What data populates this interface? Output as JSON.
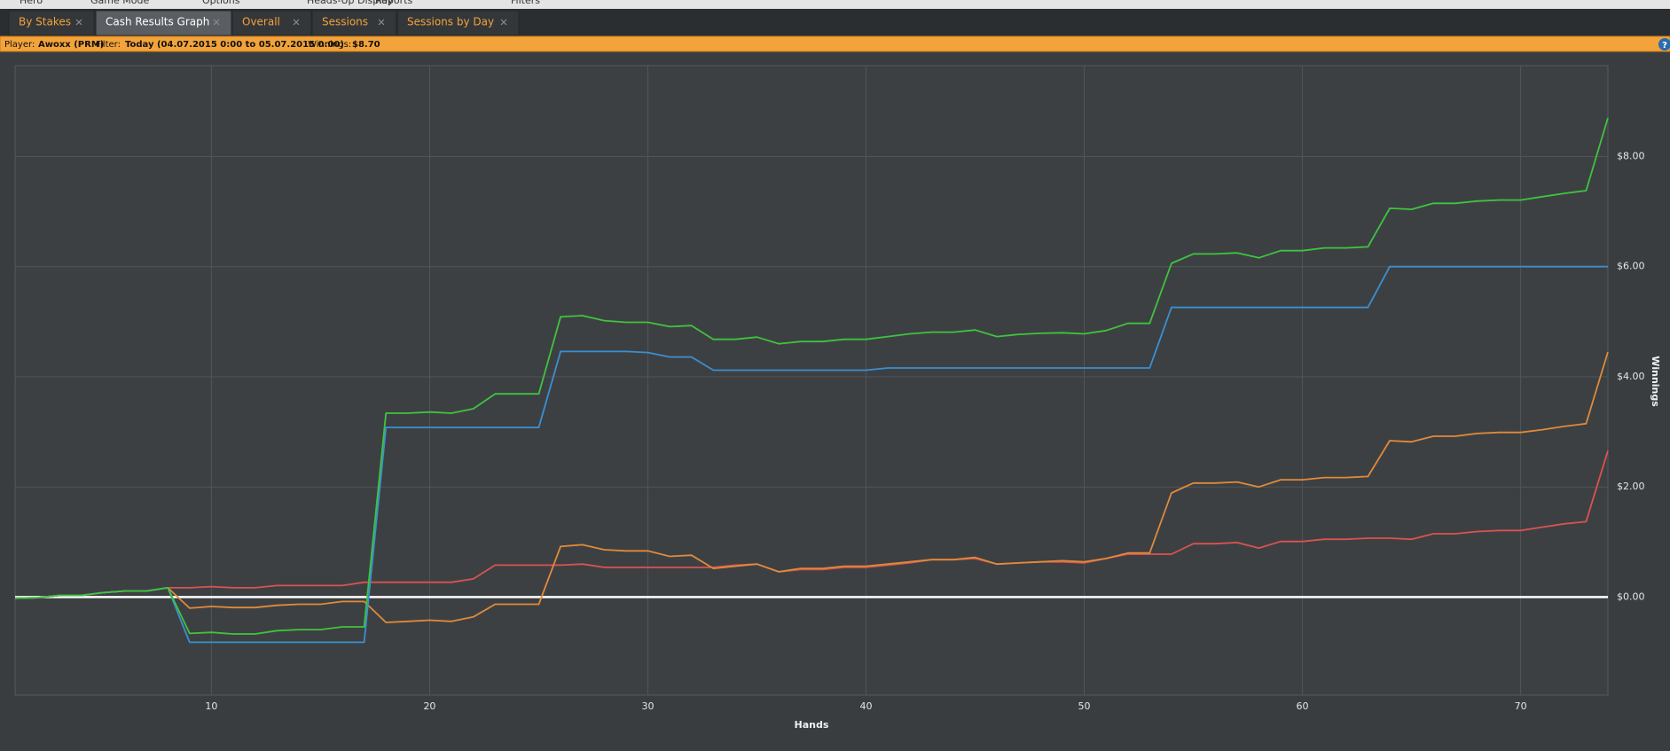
{
  "menu": [
    "Hero",
    "Game Mode",
    "Options",
    "Heads-Up Display",
    "Reports",
    "Filters"
  ],
  "tabs": [
    {
      "label": "By Stakes",
      "active": false
    },
    {
      "label": "Cash Results Graph",
      "active": true
    },
    {
      "label": "Overall",
      "active": false
    },
    {
      "label": "Sessions",
      "active": false
    },
    {
      "label": "Sessions by Day",
      "active": false
    }
  ],
  "info_bar": {
    "player_label": "Player:",
    "player": "Awoxx (PRM)",
    "filter_label": "Filter:",
    "filter": "Today (04.07.2015 0:00 to 05.07.2015 0:00)",
    "winnings_label": "Winnings:",
    "winnings": "$8.70",
    "help_icon": "?"
  },
  "chart_data": {
    "type": "line",
    "x_label": "Hands",
    "y_label": "Winnings",
    "grid": true,
    "zero_line": true,
    "x": [
      1,
      2,
      3,
      4,
      5,
      6,
      7,
      8,
      9,
      10,
      11,
      12,
      13,
      14,
      15,
      16,
      17,
      18,
      19,
      20,
      21,
      22,
      23,
      24,
      25,
      26,
      27,
      28,
      29,
      30,
      31,
      32,
      33,
      34,
      35,
      36,
      37,
      38,
      39,
      40,
      41,
      42,
      43,
      44,
      45,
      46,
      47,
      48,
      49,
      50,
      51,
      52,
      53,
      54,
      55,
      56,
      57,
      58,
      59,
      60,
      61,
      62,
      63,
      64,
      65,
      66,
      67,
      68,
      69,
      70,
      71,
      72,
      73,
      74
    ],
    "xlim": [
      1,
      74
    ],
    "xticks": [
      10,
      20,
      30,
      40,
      50,
      60,
      70
    ],
    "ylim": [
      -1.78,
      9.65
    ],
    "yticks": [
      {
        "value": 0,
        "label": "$0.00"
      },
      {
        "value": 2,
        "label": "$2.00"
      },
      {
        "value": 4,
        "label": "$4.00"
      },
      {
        "value": 6,
        "label": "$6.00"
      },
      {
        "value": 8,
        "label": "$8.00"
      }
    ],
    "series": [
      {
        "color": "#3ec43e",
        "values": [
          -0.02,
          -0.01,
          0.03,
          0.03,
          0.08,
          0.11,
          0.11,
          0.17,
          -0.66,
          -0.64,
          -0.67,
          -0.67,
          -0.61,
          -0.59,
          -0.59,
          -0.54,
          -0.54,
          3.34,
          3.34,
          3.36,
          3.34,
          3.42,
          3.69,
          3.69,
          3.69,
          5.09,
          5.11,
          5.02,
          4.99,
          4.99,
          4.91,
          4.93,
          4.68,
          4.68,
          4.72,
          4.6,
          4.64,
          4.64,
          4.68,
          4.68,
          4.73,
          4.78,
          4.81,
          4.81,
          4.85,
          4.73,
          4.77,
          4.79,
          4.8,
          4.78,
          4.84,
          4.97,
          4.97,
          6.06,
          6.23,
          6.23,
          6.25,
          6.16,
          6.29,
          6.29,
          6.34,
          6.34,
          6.36,
          7.06,
          7.04,
          7.15,
          7.15,
          7.19,
          7.21,
          7.21,
          7.27,
          7.33,
          7.38,
          8.7
        ]
      },
      {
        "color": "#3b8fd0",
        "values": [
          -0.02,
          -0.01,
          0.03,
          0.03,
          0.08,
          0.11,
          0.11,
          0.17,
          -0.82,
          -0.82,
          -0.82,
          -0.82,
          -0.82,
          -0.82,
          -0.82,
          -0.82,
          -0.82,
          3.08,
          3.08,
          3.08,
          3.08,
          3.08,
          3.08,
          3.08,
          3.08,
          4.46,
          4.46,
          4.46,
          4.46,
          4.44,
          4.36,
          4.36,
          4.12,
          4.12,
          4.12,
          4.12,
          4.12,
          4.12,
          4.12,
          4.12,
          4.16,
          4.16,
          4.16,
          4.16,
          4.16,
          4.16,
          4.16,
          4.16,
          4.16,
          4.16,
          4.16,
          4.16,
          4.16,
          5.26,
          5.26,
          5.26,
          5.26,
          5.26,
          5.26,
          5.26,
          5.26,
          5.26,
          5.26,
          6,
          6,
          6,
          6,
          6,
          6,
          6,
          6,
          6,
          6,
          6
        ]
      },
      {
        "color": "#e08a3a",
        "values": [
          -0.02,
          -0.01,
          0.03,
          0.03,
          0.08,
          0.11,
          0.11,
          0.17,
          -0.2,
          -0.17,
          -0.19,
          -0.19,
          -0.15,
          -0.13,
          -0.13,
          -0.08,
          -0.08,
          -0.46,
          -0.44,
          -0.42,
          -0.44,
          -0.36,
          -0.13,
          -0.13,
          -0.13,
          0.92,
          0.95,
          0.86,
          0.84,
          0.84,
          0.74,
          0.76,
          0.52,
          0.56,
          0.6,
          0.46,
          0.52,
          0.52,
          0.56,
          0.56,
          0.6,
          0.64,
          0.68,
          0.68,
          0.72,
          0.6,
          0.62,
          0.64,
          0.66,
          0.64,
          0.7,
          0.8,
          0.8,
          1.89,
          2.07,
          2.07,
          2.09,
          2,
          2.13,
          2.13,
          2.17,
          2.17,
          2.19,
          2.84,
          2.82,
          2.92,
          2.92,
          2.97,
          2.99,
          2.99,
          3.04,
          3.1,
          3.15,
          4.45
        ]
      },
      {
        "color": "#d9534f",
        "values": [
          -0.02,
          -0.01,
          0.03,
          0.03,
          0.08,
          0.11,
          0.11,
          0.17,
          0.17,
          0.19,
          0.17,
          0.17,
          0.21,
          0.21,
          0.21,
          0.21,
          0.27,
          0.27,
          0.27,
          0.27,
          0.27,
          0.33,
          0.58,
          0.58,
          0.58,
          0.58,
          0.6,
          0.54,
          0.54,
          0.54,
          0.54,
          0.54,
          0.54,
          0.58,
          0.6,
          0.46,
          0.5,
          0.5,
          0.54,
          0.54,
          0.58,
          0.62,
          0.68,
          0.68,
          0.7,
          0.6,
          0.62,
          0.64,
          0.64,
          0.62,
          0.7,
          0.78,
          0.78,
          0.78,
          0.97,
          0.97,
          0.99,
          0.89,
          1.01,
          1.01,
          1.05,
          1.05,
          1.07,
          1.07,
          1.05,
          1.15,
          1.15,
          1.19,
          1.21,
          1.21,
          1.27,
          1.33,
          1.37,
          2.66
        ]
      }
    ]
  }
}
